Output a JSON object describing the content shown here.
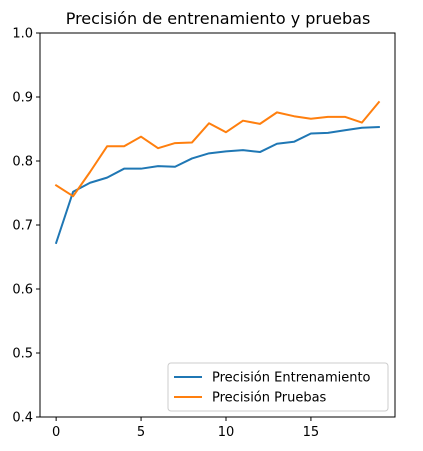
{
  "chart_data": {
    "type": "line",
    "title": "Precisión de entrenamiento y pruebas",
    "xlabel": "",
    "ylabel": "",
    "xlim": [
      -0.95,
      19.95
    ],
    "ylim": [
      0.4,
      1.0
    ],
    "x_ticks": [
      0,
      5,
      10,
      15
    ],
    "y_ticks": [
      0.4,
      0.5,
      0.6,
      0.7,
      0.8,
      0.9,
      1.0
    ],
    "x_tick_labels": [
      "0",
      "5",
      "10",
      "15"
    ],
    "y_tick_labels": [
      "0.4",
      "0.5",
      "0.6",
      "0.7",
      "0.8",
      "0.9",
      "1.0"
    ],
    "grid": false,
    "legend_position": "lower-right",
    "x": [
      0,
      1,
      2,
      3,
      4,
      5,
      6,
      7,
      8,
      9,
      10,
      11,
      12,
      13,
      14,
      15,
      16,
      17,
      18,
      19
    ],
    "series": [
      {
        "name": "Precisión Entrenamiento",
        "color": "#1f77b4",
        "values": [
          0.672,
          0.752,
          0.766,
          0.774,
          0.788,
          0.788,
          0.792,
          0.791,
          0.804,
          0.812,
          0.815,
          0.817,
          0.814,
          0.827,
          0.83,
          0.843,
          0.844,
          0.848,
          0.852,
          0.853
        ]
      },
      {
        "name": "Precisión Pruebas",
        "color": "#ff7f0e",
        "values": [
          0.762,
          0.745,
          0.783,
          0.823,
          0.823,
          0.838,
          0.82,
          0.828,
          0.829,
          0.859,
          0.845,
          0.863,
          0.858,
          0.876,
          0.87,
          0.866,
          0.869,
          0.869,
          0.86,
          0.892
        ]
      }
    ]
  }
}
